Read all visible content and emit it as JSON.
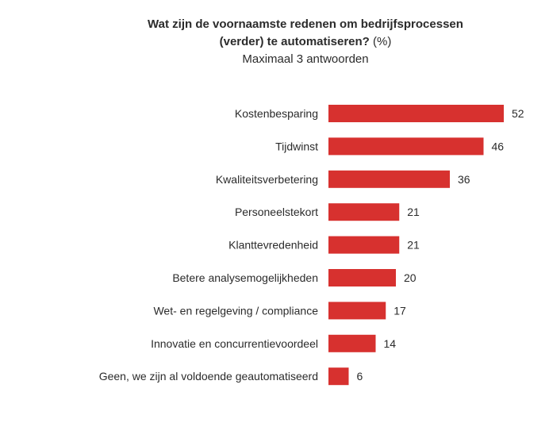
{
  "colors": {
    "bar": "#d7312f",
    "text": "#2b2b2b"
  },
  "chart_data": {
    "type": "bar",
    "orientation": "horizontal",
    "title": "Wat zijn de voornaamste redenen om bedrijfsprocessen (verder) te automatiseren? (%)",
    "title_line1": "Wat zijn de voornaamste redenen om bedrijfsprocessen",
    "title_line2_bold": "(verder) te automatiseren?",
    "title_line2_normal": " (%)",
    "subtitle": "Maximaal 3 antwoorden",
    "xlabel": "",
    "ylabel": "",
    "xlim": [
      0,
      60
    ],
    "grid": false,
    "categories": [
      "Kostenbesparing",
      "Tijdwinst",
      "Kwaliteitsverbetering",
      "Personeelstekort",
      "Klanttevredenheid",
      "Betere analysemogelijkheden",
      "Wet- en regelgeving / compliance",
      "Innovatie en concurrentievoordeel",
      "Geen, we zijn al voldoende geautomatiseerd"
    ],
    "values": [
      52,
      46,
      36,
      21,
      21,
      20,
      17,
      14,
      6
    ]
  }
}
